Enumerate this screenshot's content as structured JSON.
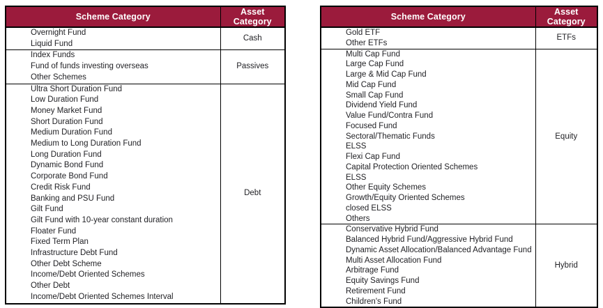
{
  "colors": {
    "header_bg": "#9b1b3c",
    "header_text": "#ffffff",
    "body_text": "#1f1f23",
    "border": "#000000"
  },
  "tables": [
    {
      "name": "left-scheme-asset-table",
      "headers": {
        "scheme": "Scheme Category",
        "asset": "Asset Category"
      },
      "groups": [
        {
          "asset": "Cash",
          "schemes": [
            "Overnight Fund",
            "Liquid Fund"
          ]
        },
        {
          "asset": "Passives",
          "schemes": [
            "Index Funds",
            "Fund of funds investing overseas",
            "Other Schemes"
          ]
        },
        {
          "asset": "Debt",
          "schemes": [
            "Ultra Short Duration Fund",
            "Low Duration Fund",
            "Money Market Fund",
            "Short Duration Fund",
            "Medium Duration Fund",
            "Medium to Long Duration Fund",
            "Long Duration Fund",
            "Dynamic Bond Fund",
            "Corporate Bond Fund",
            "Credit Risk Fund",
            "Banking and PSU Fund",
            "Gilt Fund",
            "Gilt Fund with 10-year constant duration",
            "Floater Fund",
            "Fixed Term Plan",
            "Infrastructure Debt Fund",
            "Other Debt Scheme",
            "Income/Debt Oriented Schemes",
            "Other Debt",
            "Income/Debt Oriented Schemes Interval"
          ]
        }
      ]
    },
    {
      "name": "right-scheme-asset-table",
      "headers": {
        "scheme": "Scheme Category",
        "asset": "Asset Category"
      },
      "groups": [
        {
          "asset": "ETFs",
          "schemes": [
            "Gold ETF",
            "Other ETFs"
          ]
        },
        {
          "asset": "Equity",
          "schemes": [
            "Multi Cap Fund",
            "Large Cap Fund",
            "Large & Mid Cap Fund",
            "Mid Cap Fund",
            "Small Cap Fund",
            "Dividend Yield Fund",
            "Value Fund/Contra Fund",
            "Focused Fund",
            "Sectoral/Thematic Funds",
            "ELSS",
            "Flexi Cap Fund",
            "Capital Protection Oriented Schemes",
            "ELSS",
            "Other Equity Schemes",
            "Growth/Equity Oriented Schemes",
            "closed ELSS",
            "Others"
          ]
        },
        {
          "asset": "Hybrid",
          "schemes": [
            "Conservative Hybrid Fund",
            "Balanced Hybrid Fund/Aggressive Hybrid Fund",
            "Dynamic Asset Allocation/Balanced Advantage Fund",
            "Multi Asset Allocation Fund",
            "Arbitrage Fund",
            "Equity Savings Fund",
            "Retirement Fund",
            "Children's Fund"
          ]
        }
      ]
    }
  ]
}
